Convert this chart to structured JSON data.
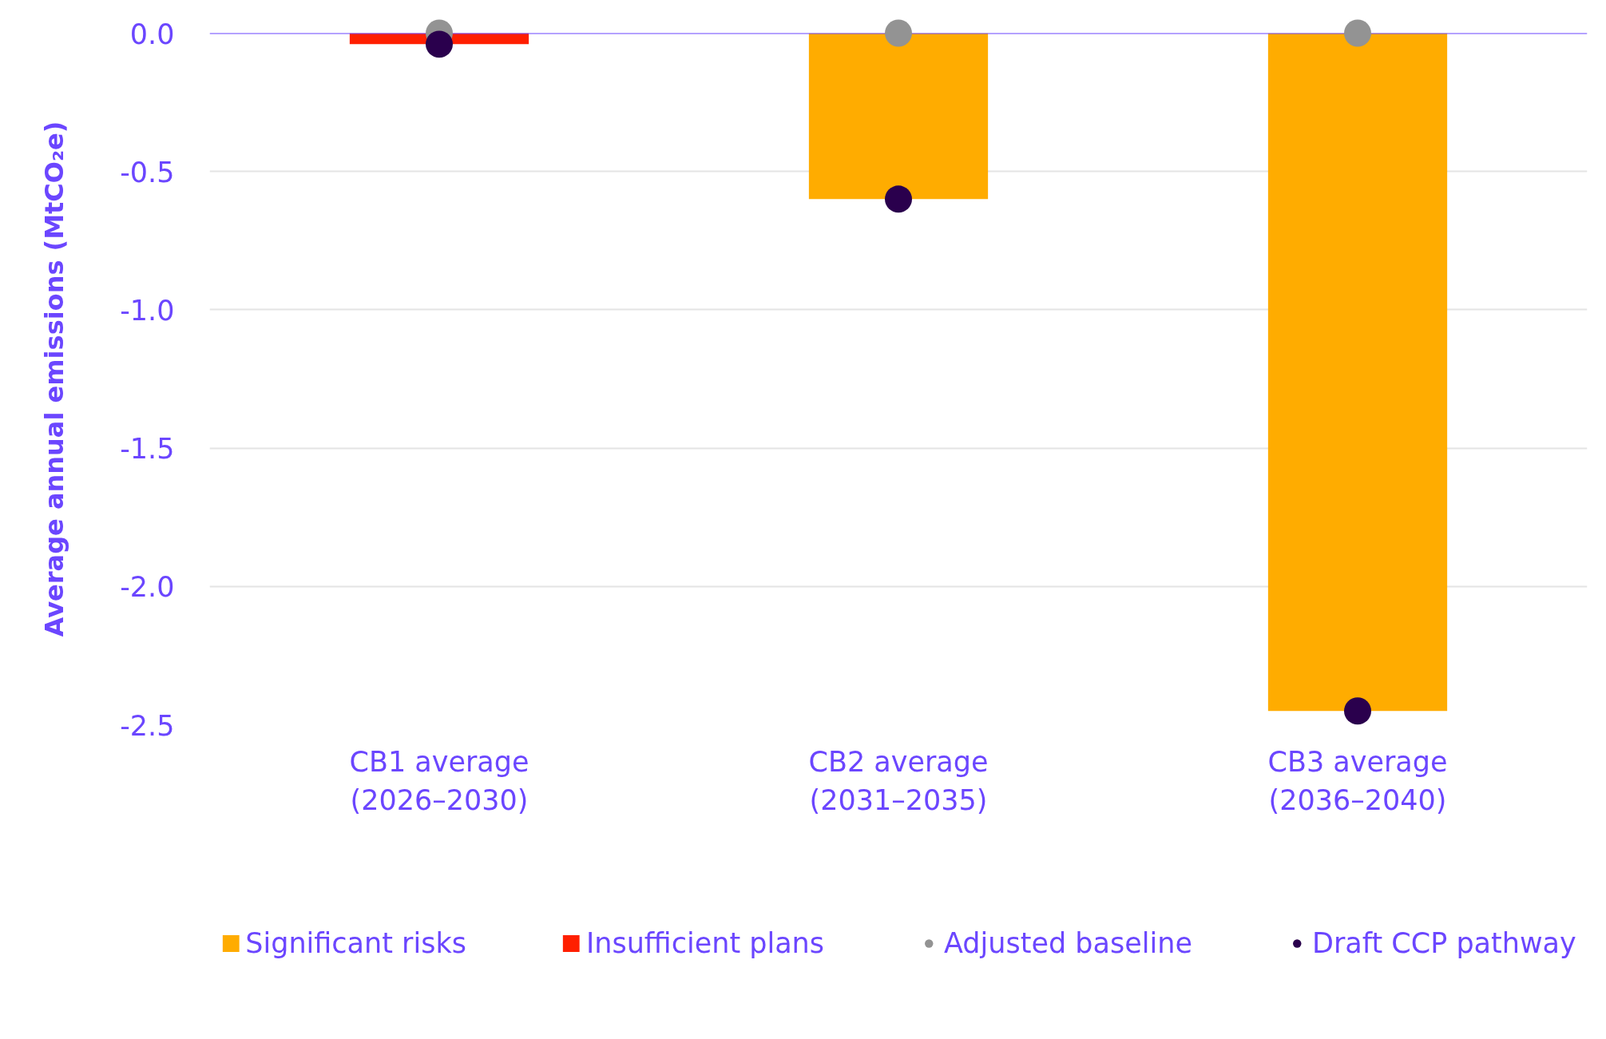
{
  "chart_data": {
    "type": "bar",
    "stacked": true,
    "ylabel": "Average annual emissions (MtCO₂e)",
    "categories": [
      "CB1 average (2026–2030)",
      "CB2 average (2031–2035)",
      "CB3 average (2036–2040)"
    ],
    "series": [
      {
        "name": "Significant risks",
        "color": "#ffac00",
        "values": [
          null,
          -0.6,
          -2.45
        ]
      },
      {
        "name": "Insufficient plans",
        "color": "#ff1f00",
        "values": [
          -0.04,
          null,
          null
        ]
      },
      {
        "name": "Adjusted baseline",
        "type": "scatter",
        "marker": "circle",
        "color": "#939393",
        "x": [
          "CB1 average (2026–2030)",
          "CB2 average (2031–2035)",
          "CB3 average (2036–2040)"
        ],
        "values": [
          0,
          0,
          0
        ]
      },
      {
        "name": "Draft CCP pathway",
        "type": "scatter",
        "marker": "circle",
        "color": "#2a004d",
        "x": [
          "CB1 average (2026–2030)",
          "CB2 average (2031–2035)",
          "CB3 average (2036–2040)"
        ],
        "values": [
          -0.04,
          -0.6,
          -2.45
        ]
      }
    ],
    "ylim": [
      -2.5,
      0
    ],
    "yticks": [
      {
        "value": 0,
        "label": "0.0"
      },
      -0.5,
      {
        "value": -1,
        "label": "-1.0"
      },
      -1.5,
      {
        "value": -2,
        "label": "-2.0"
      },
      -2.5
    ],
    "grid": "y",
    "legend": "bottom"
  }
}
